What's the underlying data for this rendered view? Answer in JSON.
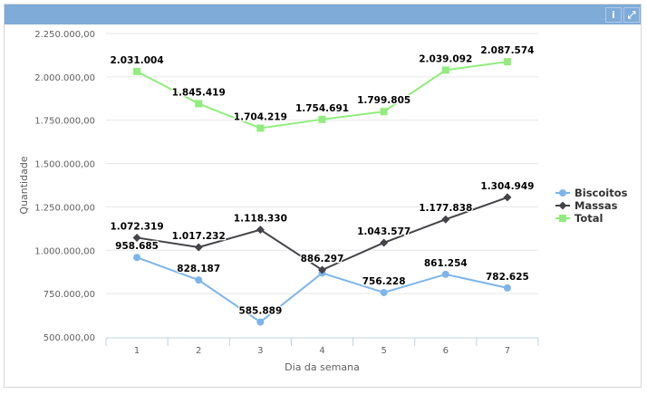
{
  "header": {
    "info_icon": "info-icon",
    "expand_icon": "expand-icon"
  },
  "chart_data": {
    "type": "line",
    "title": "",
    "xlabel": "Dia da semana",
    "ylabel": "Quantidade",
    "categories": [
      "1",
      "2",
      "3",
      "4",
      "5",
      "6",
      "7"
    ],
    "ylim": [
      500000,
      2250000
    ],
    "yticks": [
      500000,
      750000,
      1000000,
      1250000,
      1500000,
      1750000,
      2000000,
      2250000
    ],
    "ytick_labels": [
      "500.000,00",
      "750.000,00",
      "1.000.000,00",
      "1.250.000,00",
      "1.500.000,00",
      "1.750.000,00",
      "2.000.000,00",
      "2.250.000,00"
    ],
    "grid": true,
    "legend_position": "right",
    "series": [
      {
        "name": "Biscoitos",
        "color": "#7cb5ec",
        "marker": "circle",
        "values": [
          958685,
          828187,
          585889,
          868394,
          756228,
          861254,
          782625
        ],
        "labels": [
          "958.685",
          "828.187",
          "585.889",
          "",
          "756.228",
          "861.254",
          "782.625"
        ]
      },
      {
        "name": "Massas",
        "color": "#434348",
        "marker": "diamond",
        "values": [
          1072319,
          1017232,
          1118330,
          886297,
          1043577,
          1177838,
          1304949
        ],
        "labels": [
          "1.072.319",
          "1.017.232",
          "1.118.330",
          "886.297",
          "1.043.577",
          "1.177.838",
          "1.304.949"
        ]
      },
      {
        "name": "Total",
        "color": "#90ed7d",
        "marker": "square",
        "values": [
          2031004,
          1845419,
          1704219,
          1754691,
          1799805,
          2039092,
          2087574
        ],
        "labels": [
          "2.031.004",
          "1.845.419",
          "1.704.219",
          "1.754.691",
          "1.799.805",
          "2.039.092",
          "2.087.574"
        ]
      }
    ]
  }
}
